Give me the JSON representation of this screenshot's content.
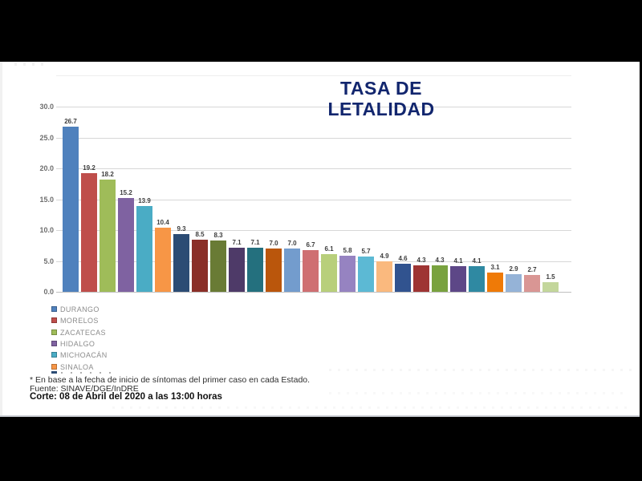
{
  "frame": {
    "background": "#000000",
    "slide_background": "#ffffff"
  },
  "title": {
    "text": "TASA DE LETALIDAD",
    "lines": [
      "TASA DE",
      "LETALIDAD"
    ],
    "color": "#12266e"
  },
  "chart_data": {
    "type": "bar",
    "title": "TASA DE LETALIDAD",
    "xlabel": "",
    "ylabel": "",
    "ylim": [
      0,
      30
    ],
    "y_ticks": [
      "0.0",
      "5.0",
      "10.0",
      "15.0",
      "20.0",
      "25.0",
      "30.0"
    ],
    "grid": true,
    "value_labels_shown": true,
    "legend_position": "bottom-left",
    "values": [
      26.7,
      19.2,
      18.2,
      15.2,
      13.9,
      10.4,
      9.3,
      8.5,
      8.3,
      7.1,
      7.1,
      7.0,
      7.0,
      6.7,
      6.1,
      5.8,
      5.7,
      4.9,
      4.6,
      4.3,
      4.3,
      4.1,
      4.1,
      3.1,
      2.9,
      2.7,
      1.5
    ],
    "value_labels": [
      "26.7",
      "19.2",
      "18.2",
      "15.2",
      "13.9",
      "10.4",
      "9.3",
      "8.5",
      "8.3",
      "7.1",
      "7.1",
      "7.0",
      "7.0",
      "6.7",
      "6.1",
      "5.8",
      "5.7",
      "4.9",
      "4.6",
      "4.3",
      "4.3",
      "4.1",
      "4.1",
      "3.1",
      "2.9",
      "2.7",
      "1.5"
    ],
    "bar_colors": [
      "#4F81BD",
      "#BF4E4B",
      "#9FBC59",
      "#7F62A1",
      "#4AACC5",
      "#F79646",
      "#2C4C74",
      "#8A2F28",
      "#697B35",
      "#4E3A68",
      "#24707E",
      "#BA560C",
      "#739CCD",
      "#CF6F72",
      "#B8CF7B",
      "#9683C1",
      "#5CB9D4",
      "#FAB97E",
      "#31538F",
      "#9E3433",
      "#79A23F",
      "#5D4787",
      "#2F89A2",
      "#EF7A07",
      "#95B3D7",
      "#D99694",
      "#C3D69B"
    ],
    "known_categories_from_legend": [
      "DURANGO",
      "MORELOS",
      "ZACATECAS",
      "HIDALGO",
      "MICHOACÁN",
      "SINALOA"
    ]
  },
  "legend": {
    "text_color": "#8c8c8c",
    "items": [
      {
        "label": "DURANGO",
        "color": "#4F81BD"
      },
      {
        "label": "MORELOS",
        "color": "#BF4E4B"
      },
      {
        "label": "ZACATECAS",
        "color": "#9FBC59"
      },
      {
        "label": "HIDALGO",
        "color": "#7F62A1"
      },
      {
        "label": "MICHOACÁN",
        "color": "#4AACC5"
      },
      {
        "label": "SINALOA",
        "color": "#F79646"
      }
    ],
    "seventh_item_truncated": true,
    "seventh_swatch_color": "#2C4C74"
  },
  "footer": {
    "note": "* En base a la fecha de inicio de síntomas del primer caso en cada Estado.",
    "source": "Fuente: SINAVE/DGE/InDRE",
    "cutoff": "Corte: 08 de Abril del 2020 a las 13:00 horas"
  }
}
